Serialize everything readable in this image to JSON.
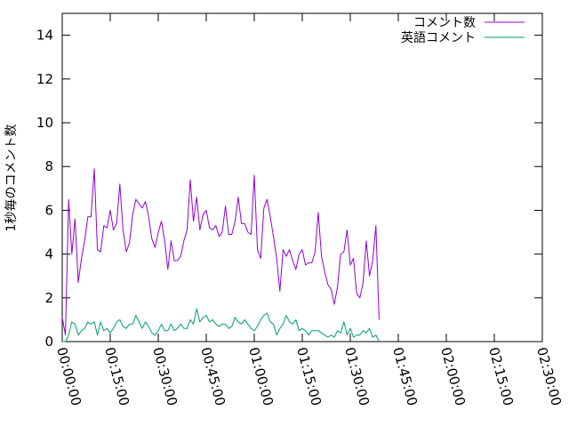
{
  "chart_data": {
    "type": "line",
    "title": "",
    "xlabel": "",
    "ylabel": "1秒毎のコメント数",
    "xlim": [
      0,
      9000
    ],
    "ylim": [
      0,
      15
    ],
    "x_ticks": [
      {
        "value": 0,
        "label": "00:00:00"
      },
      {
        "value": 900,
        "label": "00:15:00"
      },
      {
        "value": 1800,
        "label": "00:30:00"
      },
      {
        "value": 2700,
        "label": "00:45:00"
      },
      {
        "value": 3600,
        "label": "01:00:00"
      },
      {
        "value": 4500,
        "label": "01:15:00"
      },
      {
        "value": 5400,
        "label": "01:30:00"
      },
      {
        "value": 6300,
        "label": "01:45:00"
      },
      {
        "value": 7200,
        "label": "02:00:00"
      },
      {
        "value": 8100,
        "label": "02:15:00"
      },
      {
        "value": 9000,
        "label": "02:30:00"
      }
    ],
    "y_ticks": [
      {
        "value": 0,
        "label": "0"
      },
      {
        "value": 2,
        "label": "2"
      },
      {
        "value": 4,
        "label": "4"
      },
      {
        "value": 6,
        "label": "6"
      },
      {
        "value": 8,
        "label": "8"
      },
      {
        "value": 10,
        "label": "10"
      },
      {
        "value": 12,
        "label": "12"
      },
      {
        "value": 14,
        "label": "14"
      }
    ],
    "grid": false,
    "legend_position": "top-right",
    "series": [
      {
        "name": "コメント数",
        "color": "#9400d3",
        "points": [
          [
            0,
            1.1
          ],
          [
            60,
            0.3
          ],
          [
            120,
            6.5
          ],
          [
            180,
            4.0
          ],
          [
            240,
            5.6
          ],
          [
            300,
            2.7
          ],
          [
            360,
            3.8
          ],
          [
            420,
            4.6
          ],
          [
            480,
            5.7
          ],
          [
            540,
            5.7
          ],
          [
            600,
            7.9
          ],
          [
            660,
            4.2
          ],
          [
            720,
            4.1
          ],
          [
            780,
            5.3
          ],
          [
            840,
            5.2
          ],
          [
            900,
            6.0
          ],
          [
            960,
            5.1
          ],
          [
            1020,
            5.4
          ],
          [
            1080,
            7.2
          ],
          [
            1140,
            5.1
          ],
          [
            1200,
            4.1
          ],
          [
            1260,
            4.5
          ],
          [
            1320,
            5.8
          ],
          [
            1380,
            6.5
          ],
          [
            1440,
            6.3
          ],
          [
            1500,
            6.1
          ],
          [
            1560,
            6.4
          ],
          [
            1620,
            5.7
          ],
          [
            1680,
            4.7
          ],
          [
            1740,
            4.3
          ],
          [
            1800,
            5.0
          ],
          [
            1860,
            5.5
          ],
          [
            1920,
            4.6
          ],
          [
            1980,
            3.3
          ],
          [
            2040,
            4.6
          ],
          [
            2100,
            3.7
          ],
          [
            2160,
            3.7
          ],
          [
            2220,
            3.9
          ],
          [
            2280,
            4.6
          ],
          [
            2340,
            5.1
          ],
          [
            2400,
            7.4
          ],
          [
            2460,
            5.5
          ],
          [
            2520,
            6.6
          ],
          [
            2580,
            5.1
          ],
          [
            2640,
            5.8
          ],
          [
            2700,
            6.0
          ],
          [
            2760,
            5.2
          ],
          [
            2820,
            5.1
          ],
          [
            2880,
            5.3
          ],
          [
            2940,
            4.8
          ],
          [
            3000,
            5.0
          ],
          [
            3060,
            6.2
          ],
          [
            3120,
            4.9
          ],
          [
            3180,
            4.9
          ],
          [
            3240,
            5.5
          ],
          [
            3300,
            6.6
          ],
          [
            3360,
            5.4
          ],
          [
            3420,
            5.4
          ],
          [
            3480,
            5.0
          ],
          [
            3540,
            4.9
          ],
          [
            3600,
            7.6
          ],
          [
            3660,
            4.2
          ],
          [
            3720,
            3.8
          ],
          [
            3780,
            6.1
          ],
          [
            3840,
            6.5
          ],
          [
            3900,
            5.7
          ],
          [
            3960,
            4.8
          ],
          [
            4020,
            3.8
          ],
          [
            4080,
            2.3
          ],
          [
            4140,
            4.2
          ],
          [
            4200,
            3.9
          ],
          [
            4260,
            4.2
          ],
          [
            4320,
            3.7
          ],
          [
            4380,
            3.3
          ],
          [
            4440,
            4.0
          ],
          [
            4500,
            4.2
          ],
          [
            4560,
            3.5
          ],
          [
            4620,
            3.6
          ],
          [
            4680,
            3.6
          ],
          [
            4740,
            4.1
          ],
          [
            4800,
            5.9
          ],
          [
            4860,
            3.9
          ],
          [
            4920,
            3.2
          ],
          [
            4980,
            2.6
          ],
          [
            5040,
            2.4
          ],
          [
            5100,
            1.7
          ],
          [
            5160,
            2.5
          ],
          [
            5220,
            4.0
          ],
          [
            5280,
            4.1
          ],
          [
            5340,
            5.1
          ],
          [
            5400,
            3.5
          ],
          [
            5460,
            3.8
          ],
          [
            5520,
            2.2
          ],
          [
            5580,
            2.0
          ],
          [
            5640,
            2.7
          ],
          [
            5700,
            4.6
          ],
          [
            5760,
            3.0
          ],
          [
            5820,
            3.7
          ],
          [
            5880,
            5.3
          ],
          [
            5940,
            1.0
          ]
        ]
      },
      {
        "name": "英語コメント",
        "color": "#009e73",
        "points": [
          [
            0,
            0.0
          ],
          [
            60,
            0.0
          ],
          [
            120,
            0.3
          ],
          [
            180,
            0.9
          ],
          [
            240,
            0.8
          ],
          [
            300,
            0.3
          ],
          [
            360,
            0.5
          ],
          [
            420,
            0.6
          ],
          [
            480,
            0.9
          ],
          [
            540,
            0.8
          ],
          [
            600,
            0.9
          ],
          [
            660,
            0.3
          ],
          [
            720,
            0.9
          ],
          [
            780,
            0.5
          ],
          [
            840,
            0.6
          ],
          [
            900,
            0.4
          ],
          [
            960,
            0.6
          ],
          [
            1020,
            0.9
          ],
          [
            1080,
            1.0
          ],
          [
            1140,
            0.7
          ],
          [
            1200,
            0.6
          ],
          [
            1260,
            0.8
          ],
          [
            1320,
            0.8
          ],
          [
            1380,
            1.2
          ],
          [
            1440,
            0.9
          ],
          [
            1500,
            0.6
          ],
          [
            1560,
            0.9
          ],
          [
            1620,
            0.7
          ],
          [
            1680,
            0.4
          ],
          [
            1740,
            0.3
          ],
          [
            1800,
            0.5
          ],
          [
            1860,
            0.8
          ],
          [
            1920,
            0.5
          ],
          [
            1980,
            0.5
          ],
          [
            2040,
            0.8
          ],
          [
            2100,
            0.5
          ],
          [
            2160,
            0.6
          ],
          [
            2220,
            0.8
          ],
          [
            2280,
            0.6
          ],
          [
            2340,
            0.6
          ],
          [
            2400,
            1.0
          ],
          [
            2460,
            0.8
          ],
          [
            2520,
            1.5
          ],
          [
            2580,
            0.9
          ],
          [
            2640,
            1.1
          ],
          [
            2700,
            1.2
          ],
          [
            2760,
            0.9
          ],
          [
            2820,
            1.0
          ],
          [
            2880,
            0.8
          ],
          [
            2940,
            0.7
          ],
          [
            3000,
            0.8
          ],
          [
            3060,
            0.8
          ],
          [
            3120,
            0.6
          ],
          [
            3180,
            0.7
          ],
          [
            3240,
            1.1
          ],
          [
            3300,
            0.9
          ],
          [
            3360,
            0.8
          ],
          [
            3420,
            1.0
          ],
          [
            3480,
            0.8
          ],
          [
            3540,
            0.6
          ],
          [
            3600,
            0.5
          ],
          [
            3660,
            0.7
          ],
          [
            3720,
            1.0
          ],
          [
            3780,
            1.2
          ],
          [
            3840,
            1.3
          ],
          [
            3900,
            0.9
          ],
          [
            3960,
            0.8
          ],
          [
            4020,
            0.3
          ],
          [
            4080,
            0.6
          ],
          [
            4140,
            0.8
          ],
          [
            4200,
            1.2
          ],
          [
            4260,
            0.9
          ],
          [
            4320,
            0.8
          ],
          [
            4380,
            1.0
          ],
          [
            4440,
            0.5
          ],
          [
            4500,
            0.6
          ],
          [
            4560,
            0.5
          ],
          [
            4620,
            0.3
          ],
          [
            4680,
            0.5
          ],
          [
            4740,
            0.5
          ],
          [
            4800,
            0.5
          ],
          [
            4860,
            0.4
          ],
          [
            4920,
            0.3
          ],
          [
            4980,
            0.2
          ],
          [
            5040,
            0.3
          ],
          [
            5100,
            0.2
          ],
          [
            5160,
            0.5
          ],
          [
            5220,
            0.4
          ],
          [
            5280,
            0.9
          ],
          [
            5340,
            0.3
          ],
          [
            5400,
            0.6
          ],
          [
            5460,
            0.2
          ],
          [
            5520,
            0.3
          ],
          [
            5580,
            0.3
          ],
          [
            5640,
            0.5
          ],
          [
            5700,
            0.4
          ],
          [
            5760,
            0.6
          ],
          [
            5820,
            0.2
          ],
          [
            5880,
            0.3
          ],
          [
            5940,
            0.0
          ]
        ]
      }
    ]
  }
}
